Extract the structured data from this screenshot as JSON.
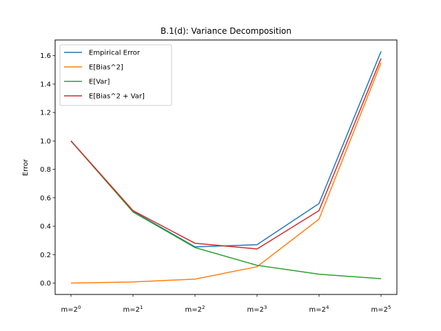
{
  "chart_data": {
    "type": "line",
    "title": "B.1(d): Variance Decomposition",
    "xlabel": "",
    "ylabel": "Error",
    "categories": [
      {
        "base": "m=2",
        "exp": "0"
      },
      {
        "base": "m=2",
        "exp": "1"
      },
      {
        "base": "m=2",
        "exp": "2"
      },
      {
        "base": "m=2",
        "exp": "3"
      },
      {
        "base": "m=2",
        "exp": "4"
      },
      {
        "base": "m=2",
        "exp": "5"
      }
    ],
    "ylim": [
      -0.08,
      1.71
    ],
    "yticks": [
      "0.0",
      "0.2",
      "0.4",
      "0.6",
      "0.8",
      "1.0",
      "1.2",
      "1.4",
      "1.6"
    ],
    "grid": false,
    "legend_position": "top-left",
    "series": [
      {
        "name": "Empirical Error",
        "color": "#1f77b4",
        "values": [
          1.0,
          0.505,
          0.255,
          0.27,
          0.56,
          1.63
        ]
      },
      {
        "name": "E[Bias^2]",
        "color": "#ff7f0e",
        "values": [
          0.0,
          0.008,
          0.028,
          0.115,
          0.45,
          1.55
        ]
      },
      {
        "name": "E[Var]",
        "color": "#2ca02c",
        "values": [
          1.0,
          0.5,
          0.25,
          0.125,
          0.0625,
          0.031
        ]
      },
      {
        "name": "E[Bias^2 + Var]",
        "color": "#d62728",
        "values": [
          1.0,
          0.51,
          0.28,
          0.24,
          0.51,
          1.58
        ]
      }
    ]
  }
}
